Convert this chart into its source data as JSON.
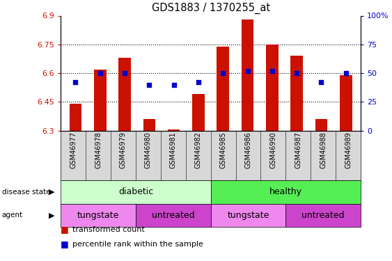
{
  "title": "GDS1883 / 1370255_at",
  "samples": [
    "GSM46977",
    "GSM46978",
    "GSM46979",
    "GSM46980",
    "GSM46981",
    "GSM46982",
    "GSM46985",
    "GSM46986",
    "GSM46990",
    "GSM46987",
    "GSM46988",
    "GSM46989"
  ],
  "bar_values": [
    6.44,
    6.62,
    6.68,
    6.36,
    6.305,
    6.49,
    6.74,
    6.88,
    6.75,
    6.69,
    6.36,
    6.59
  ],
  "percentile_values": [
    42,
    50,
    50,
    40,
    40,
    42,
    50,
    52,
    52,
    50,
    42,
    50
  ],
  "bar_color": "#cc1100",
  "percentile_color": "#0000cc",
  "ylim_left": [
    6.3,
    6.9
  ],
  "ylim_right": [
    0,
    100
  ],
  "yticks_left": [
    6.3,
    6.45,
    6.6,
    6.75,
    6.9
  ],
  "yticks_right": [
    0,
    25,
    50,
    75,
    100
  ],
  "ytick_labels_left": [
    "6.3",
    "6.45",
    "6.6",
    "6.75",
    "6.9"
  ],
  "ytick_labels_right": [
    "0",
    "25",
    "50",
    "75",
    "100%"
  ],
  "hlines": [
    6.45,
    6.6,
    6.75
  ],
  "disease_state_labels": [
    {
      "label": "diabetic",
      "start": 0,
      "end": 6,
      "color": "#ccffcc"
    },
    {
      "label": "healthy",
      "start": 6,
      "end": 12,
      "color": "#55ee55"
    }
  ],
  "agent_labels": [
    {
      "label": "tungstate",
      "start": 0,
      "end": 3,
      "color": "#ee88ee"
    },
    {
      "label": "untreated",
      "start": 3,
      "end": 6,
      "color": "#cc44cc"
    },
    {
      "label": "tungstate",
      "start": 6,
      "end": 9,
      "color": "#ee88ee"
    },
    {
      "label": "untreated",
      "start": 9,
      "end": 12,
      "color": "#cc44cc"
    }
  ],
  "legend_items": [
    {
      "label": "transformed count",
      "color": "#cc1100"
    },
    {
      "label": "percentile rank within the sample",
      "color": "#0000cc"
    }
  ],
  "bar_width": 0.5,
  "plot_bg": "#ffffff",
  "axes_label_color_left": "#cc1100",
  "axes_label_color_right": "#0000cc",
  "n_samples": 12,
  "xlim": [
    -0.6,
    11.6
  ]
}
